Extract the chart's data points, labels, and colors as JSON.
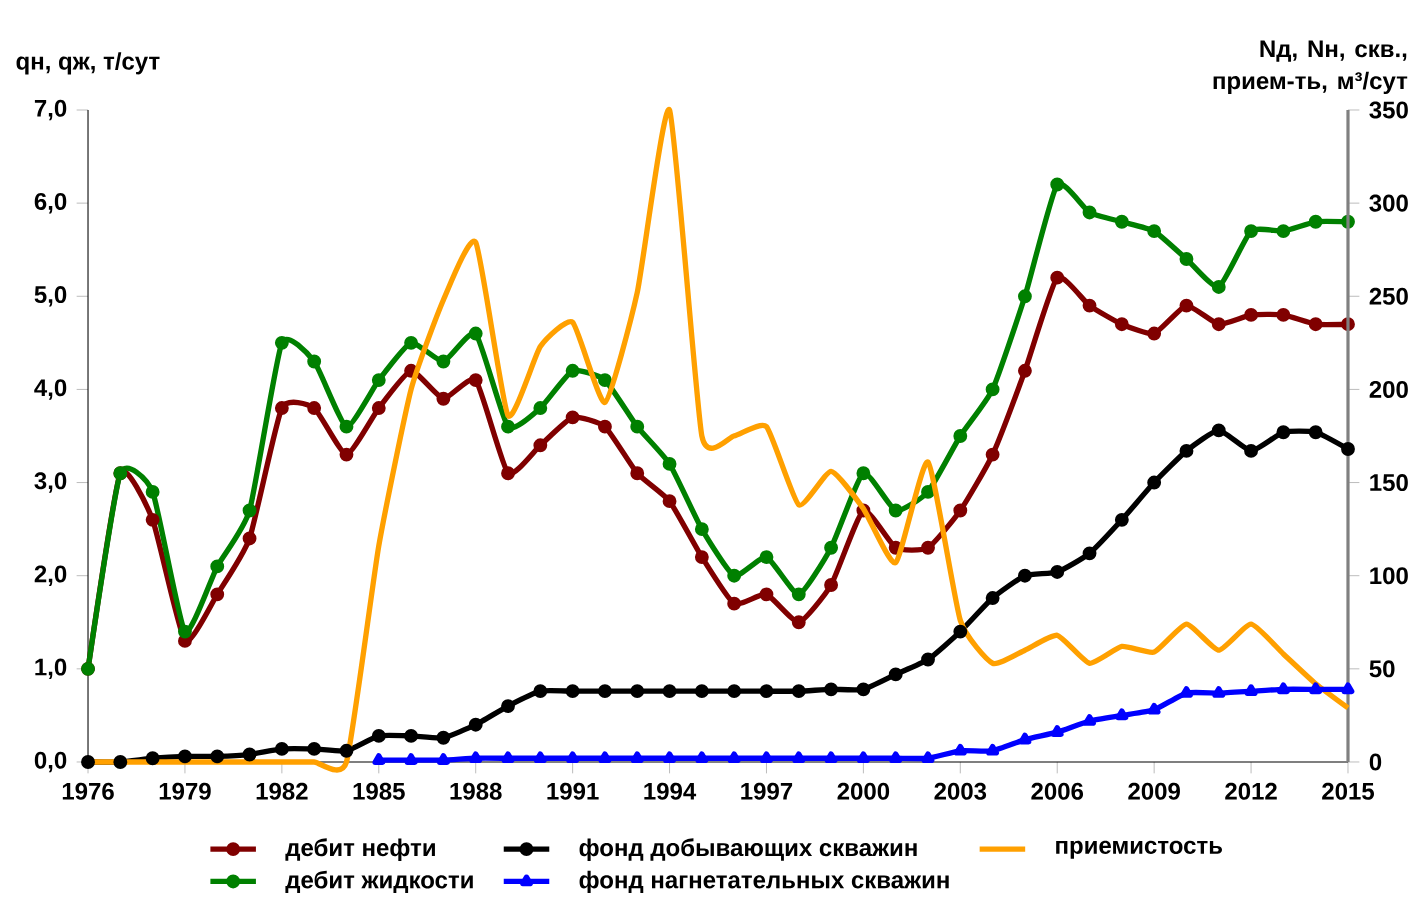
{
  "chart_data": {
    "type": "line",
    "ylabel": "qн, qж, т/сут",
    "y2label": "Nд, Nн, скв., прием-ть, м³/сут",
    "x": [
      1976,
      1977,
      1978,
      1979,
      1980,
      1981,
      1982,
      1983,
      1984,
      1985,
      1986,
      1987,
      1988,
      1989,
      1990,
      1991,
      1992,
      1993,
      1994,
      1995,
      1996,
      1997,
      1998,
      1999,
      2000,
      2001,
      2002,
      2003,
      2004,
      2005,
      2006,
      2007,
      2008,
      2009,
      2010,
      2011,
      2012,
      2013,
      2014,
      2015
    ],
    "xlim": [
      1976,
      2015
    ],
    "xticks": [
      1976,
      1979,
      1982,
      1985,
      1988,
      1991,
      1994,
      1997,
      2000,
      2003,
      2006,
      2009,
      2012,
      2015
    ],
    "ylim": [
      0,
      7
    ],
    "yticks": [
      {
        "value": 0,
        "label": "0,0"
      },
      {
        "value": 1,
        "label": "1,0"
      },
      {
        "value": 2,
        "label": "2,0"
      },
      {
        "value": 3,
        "label": "3,0"
      },
      {
        "value": 4,
        "label": "4,0"
      },
      {
        "value": 5,
        "label": "5,0"
      },
      {
        "value": 6,
        "label": "6,0"
      },
      {
        "value": 7,
        "label": "7,0"
      }
    ],
    "y2lim": [
      0,
      350
    ],
    "y2ticks": [
      0,
      50,
      100,
      150,
      200,
      250,
      300,
      350
    ],
    "legend": "bottom",
    "grid": false,
    "series": [
      {
        "name": "дебит нефти",
        "color": "#800000",
        "marker": "circle",
        "values": [
          1.0,
          3.1,
          2.6,
          1.3,
          1.8,
          2.4,
          3.8,
          3.8,
          3.3,
          3.8,
          4.2,
          3.9,
          4.1,
          3.1,
          3.4,
          3.7,
          3.6,
          3.1,
          2.8,
          2.2,
          1.7,
          1.8,
          1.5,
          1.9,
          2.7,
          2.3,
          2.3,
          2.7,
          3.3,
          4.2,
          5.2,
          4.9,
          4.7,
          4.6,
          4.9,
          4.7,
          4.8,
          4.8,
          4.7,
          4.7
        ]
      },
      {
        "name": "фонд добывающих скважин",
        "color": "#000000",
        "marker": "circle",
        "axis": "y2",
        "values": [
          0,
          0,
          2,
          3,
          3,
          4,
          7,
          7,
          6,
          14,
          14,
          13,
          20,
          30,
          38,
          38,
          38,
          38,
          38,
          38,
          38,
          38,
          38,
          39,
          39,
          47,
          55,
          70,
          88,
          100,
          102,
          112,
          130,
          150,
          167,
          178,
          167,
          177,
          177,
          168
        ]
      },
      {
        "name": "приемистость",
        "color": "#ffa000",
        "marker": "none",
        "axis": "y2",
        "values": [
          0,
          0,
          0,
          0,
          0,
          0,
          0,
          0,
          0,
          116,
          200,
          248,
          279,
          186,
          223,
          236,
          193,
          252,
          350,
          175,
          175,
          180,
          138,
          156,
          136,
          107,
          161,
          76,
          53,
          60,
          68,
          53,
          62,
          59,
          74,
          60,
          74,
          58,
          42,
          29
        ]
      },
      {
        "name": "дебит  жидкости",
        "color": "#008000",
        "marker": "circle",
        "values": [
          1.0,
          3.1,
          2.9,
          1.4,
          2.1,
          2.7,
          4.5,
          4.3,
          3.6,
          4.1,
          4.5,
          4.3,
          4.6,
          3.6,
          3.8,
          4.2,
          4.1,
          3.6,
          3.2,
          2.5,
          2.0,
          2.2,
          1.8,
          2.3,
          3.1,
          2.7,
          2.9,
          3.5,
          4.0,
          5.0,
          6.2,
          5.9,
          5.8,
          5.7,
          5.4,
          5.1,
          5.7,
          5.7,
          5.8,
          5.8
        ]
      },
      {
        "name": "фонд нагнетательных скважин",
        "color": "#0000ff",
        "marker": "triangle",
        "axis": "y2",
        "values": [
          null,
          null,
          null,
          null,
          null,
          null,
          null,
          null,
          null,
          1,
          1,
          1,
          2,
          2,
          2,
          2,
          2,
          2,
          2,
          2,
          2,
          2,
          2,
          2,
          2,
          2,
          2,
          6,
          6,
          12,
          16,
          22,
          25,
          28,
          37,
          37,
          38,
          39,
          39,
          39
        ]
      }
    ]
  }
}
